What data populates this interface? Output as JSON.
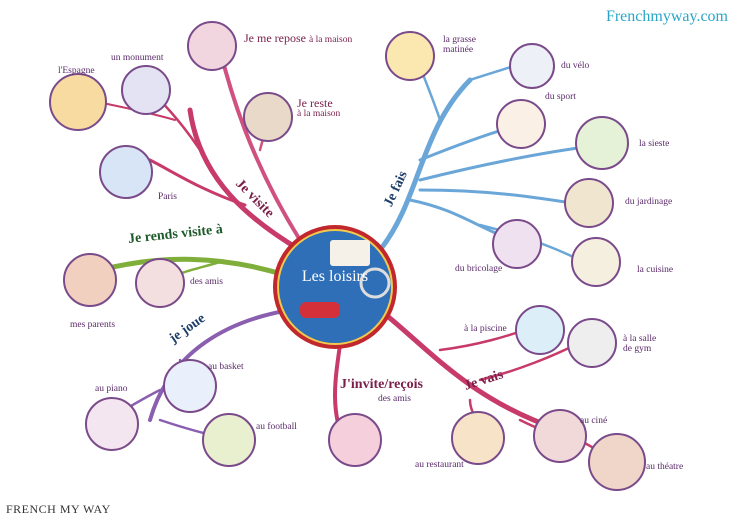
{
  "site_url": "Frenchmyway.com",
  "brand": "FRENCH MY WAY",
  "center": {
    "title": "Les loisirs"
  },
  "branches": {
    "visite": "Je visite",
    "fais": "Je fais",
    "rends": "Je rends visite à",
    "joue": "je joue",
    "invite": "J'invite/reçois",
    "vais": "Je vais"
  },
  "topics": {
    "repose": "Je me repose",
    "repose_sub": "à la maison",
    "reste": "Je reste",
    "reste_sub": "à la maison",
    "monument": "un monument",
    "espagne": "l'Espagne",
    "paris": "Paris",
    "grasse_1": "la grasse",
    "grasse_2": "matinée",
    "velo": "du vélo",
    "sport": "du sport",
    "sieste": "la sieste",
    "jardinage": "du jardinage",
    "bricolage": "du bricolage",
    "cuisine": "la cuisine",
    "des_amis": "des amis",
    "parents": "mes parents",
    "basket": "au basket",
    "piano": "au piano",
    "football": "au football",
    "invite_amis": "des amis",
    "piscine": "à la piscine",
    "salle_1": "à la salle",
    "salle_2": "de gym",
    "cine": "au ciné",
    "restaurant": "au restaurant",
    "theatre": "au théatre"
  },
  "colors": {
    "center_fill": "#2f6fb8",
    "center_ring": "#c0282e",
    "branch_pink": "#c73a6a",
    "branch_blue": "#6aa6d8",
    "branch_green": "#7fae3a"
  }
}
